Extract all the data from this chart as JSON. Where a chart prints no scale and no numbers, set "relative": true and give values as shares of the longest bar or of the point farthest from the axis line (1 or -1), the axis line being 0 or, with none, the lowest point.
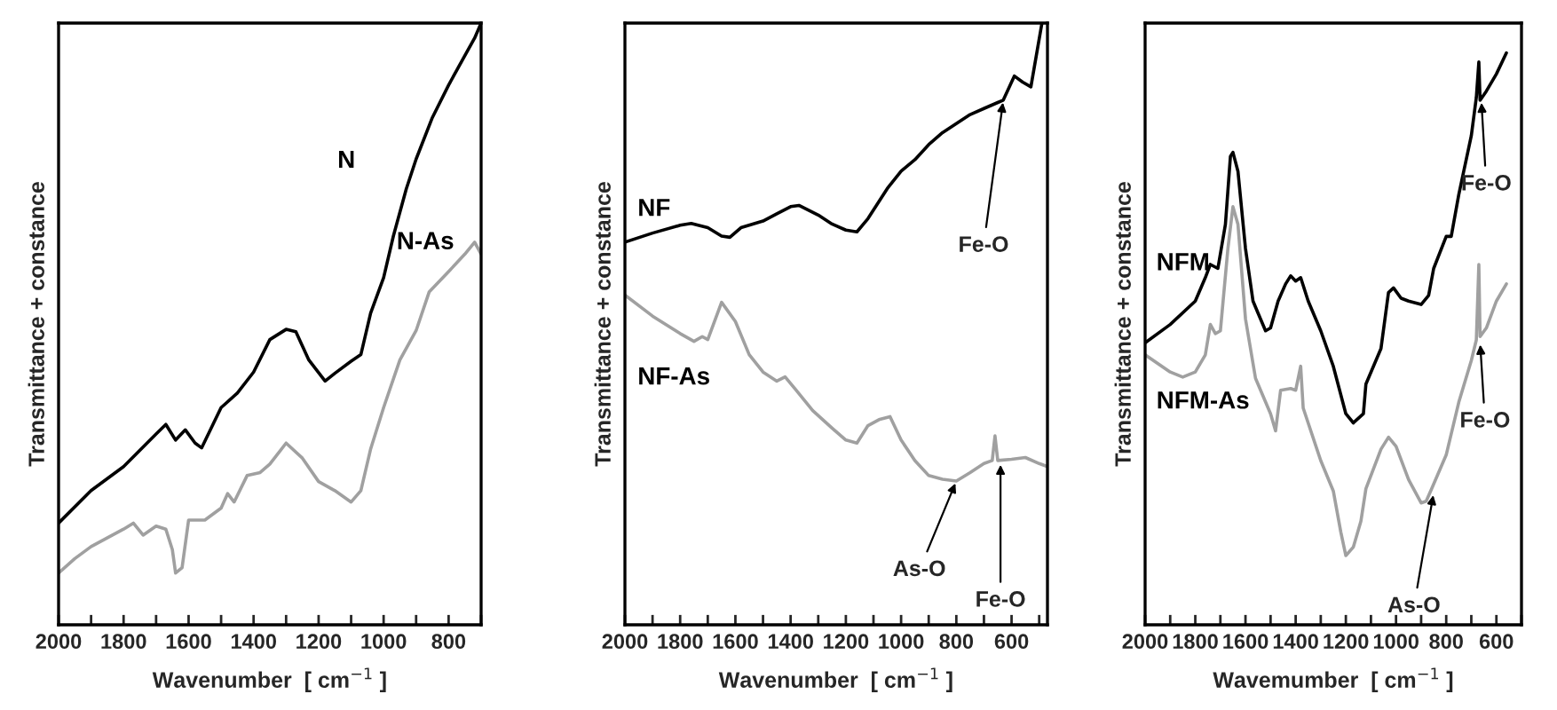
{
  "chart_data": [
    {
      "type": "line",
      "relative": true,
      "xlabel": "Wavenumber  [ cm$^{−1}$ ]",
      "ylabel": "Transmittance + constance",
      "xlim": [
        2000,
        700
      ],
      "xticks": [
        2000,
        {
          "value": 1900,
          "label": null
        },
        1800,
        {
          "value": 1700,
          "label": null
        },
        1600,
        {
          "value": 1500,
          "label": null
        },
        1400,
        {
          "value": 1300,
          "label": null
        },
        1200,
        {
          "value": 1100,
          "label": null
        },
        1000,
        {
          "value": 900,
          "label": null
        },
        800,
        {
          "value": 700,
          "label": null
        }
      ],
      "tick_labels": "x",
      "grid": false,
      "legend": false,
      "series": [
        {
          "name": "N",
          "color": "#000000",
          "x": [
            2000,
            1900,
            1800,
            1700,
            1670,
            1640,
            1610,
            1580,
            1560,
            1500,
            1450,
            1400,
            1350,
            1300,
            1270,
            1230,
            1180,
            1150,
            1100,
            1070,
            1040,
            1000,
            970,
            930,
            900,
            850,
            800,
            750,
            720,
            700
          ],
          "values": [
            0.169,
            0.223,
            0.263,
            0.317,
            0.333,
            0.307,
            0.324,
            0.302,
            0.294,
            0.361,
            0.385,
            0.42,
            0.474,
            0.491,
            0.487,
            0.44,
            0.405,
            0.418,
            0.438,
            0.449,
            0.518,
            0.577,
            0.646,
            0.725,
            0.774,
            0.843,
            0.897,
            0.946,
            0.975,
            1.0
          ]
        },
        {
          "name": "N-As",
          "color": "#a0a0a0",
          "x": [
            2000,
            1950,
            1900,
            1800,
            1770,
            1740,
            1700,
            1670,
            1650,
            1640,
            1620,
            1600,
            1550,
            1500,
            1480,
            1460,
            1420,
            1380,
            1350,
            1300,
            1250,
            1200,
            1150,
            1100,
            1070,
            1040,
            1000,
            950,
            900,
            860,
            800,
            750,
            720,
            700
          ],
          "values": [
            0.086,
            0.11,
            0.13,
            0.159,
            0.169,
            0.149,
            0.164,
            0.159,
            0.125,
            0.086,
            0.095,
            0.174,
            0.174,
            0.194,
            0.218,
            0.204,
            0.248,
            0.253,
            0.267,
            0.302,
            0.277,
            0.238,
            0.223,
            0.204,
            0.223,
            0.292,
            0.361,
            0.44,
            0.489,
            0.553,
            0.587,
            0.616,
            0.636,
            0.616
          ]
        }
      ]
    },
    {
      "type": "line",
      "relative": true,
      "xlabel": "Wavenumber  [ cm$^{−1}$ ]",
      "ylabel": "Transmittance + constance",
      "xlim": [
        2000,
        470
      ],
      "xticks": [
        2000,
        {
          "value": 1900,
          "label": null
        },
        1800,
        {
          "value": 1700,
          "label": null
        },
        1600,
        {
          "value": 1500,
          "label": null
        },
        1400,
        {
          "value": 1300,
          "label": null
        },
        1200,
        {
          "value": 1100,
          "label": null
        },
        1000,
        {
          "value": 900,
          "label": null
        },
        800,
        {
          "value": 700,
          "label": null
        },
        600,
        {
          "value": 500,
          "label": null
        }
      ],
      "tick_labels": "x",
      "grid": false,
      "legend": false,
      "annotations": [
        {
          "text": "Fe-O",
          "x": 630,
          "y": 0.872
        },
        {
          "text": "As-O",
          "x": 800,
          "y": 0.239
        },
        {
          "text": "Fe-O",
          "x": 640,
          "y": 0.27
        }
      ],
      "series": [
        {
          "name": "NF",
          "color": "#000000",
          "x": [
            2000,
            1900,
            1800,
            1760,
            1700,
            1650,
            1620,
            1580,
            1500,
            1450,
            1400,
            1370,
            1300,
            1250,
            1200,
            1160,
            1120,
            1050,
            1000,
            950,
            900,
            850,
            800,
            750,
            700,
            650,
            630,
            590,
            560,
            530,
            490
          ],
          "values": [
            0.636,
            0.651,
            0.664,
            0.667,
            0.66,
            0.646,
            0.644,
            0.66,
            0.671,
            0.683,
            0.695,
            0.697,
            0.681,
            0.666,
            0.656,
            0.653,
            0.675,
            0.725,
            0.754,
            0.773,
            0.798,
            0.818,
            0.833,
            0.848,
            0.858,
            0.868,
            0.872,
            0.912,
            0.902,
            0.894,
            1.0
          ]
        },
        {
          "name": "NF-As",
          "color": "#a0a0a0",
          "x": [
            2000,
            1900,
            1800,
            1750,
            1720,
            1700,
            1650,
            1600,
            1550,
            1500,
            1450,
            1420,
            1380,
            1320,
            1250,
            1200,
            1160,
            1120,
            1080,
            1040,
            1000,
            950,
            900,
            850,
            800,
            750,
            700,
            670,
            660,
            650,
            600,
            550,
            500,
            470
          ],
          "values": [
            0.548,
            0.513,
            0.484,
            0.471,
            0.479,
            0.474,
            0.536,
            0.504,
            0.449,
            0.42,
            0.405,
            0.412,
            0.39,
            0.356,
            0.327,
            0.307,
            0.302,
            0.331,
            0.341,
            0.346,
            0.307,
            0.273,
            0.248,
            0.242,
            0.239,
            0.253,
            0.268,
            0.273,
            0.314,
            0.273,
            0.275,
            0.278,
            0.268,
            0.263
          ]
        }
      ]
    },
    {
      "type": "line",
      "relative": true,
      "xlabel": "Wavemumber  [ cm$^{−1}$ ]",
      "ylabel": "Transmittance + constance",
      "xlim": [
        2000,
        500
      ],
      "xticks": [
        2000,
        {
          "value": 1900,
          "label": null
        },
        1800,
        {
          "value": 1700,
          "label": null
        },
        1600,
        {
          "value": 1500,
          "label": null
        },
        1400,
        {
          "value": 1300,
          "label": null
        },
        1200,
        {
          "value": 1100,
          "label": null
        },
        1000,
        {
          "value": 900,
          "label": null
        },
        800,
        {
          "value": 700,
          "label": null
        },
        600,
        {
          "value": 500,
          "label": null
        }
      ],
      "tick_labels": "x",
      "grid": false,
      "legend": false,
      "annotations": [
        {
          "text": "Fe-O",
          "x": 660,
          "y": 0.917
        },
        {
          "text": "Fe-O",
          "x": 665,
          "y": 0.494
        },
        {
          "text": "As-O",
          "x": 850,
          "y": 0.231
        }
      ],
      "series": [
        {
          "name": "NFM",
          "color": "#000000",
          "x": [
            2000,
            1900,
            1800,
            1760,
            1740,
            1710,
            1680,
            1660,
            1650,
            1630,
            1600,
            1570,
            1550,
            1520,
            1500,
            1470,
            1440,
            1420,
            1400,
            1380,
            1350,
            1300,
            1250,
            1200,
            1170,
            1130,
            1120,
            1060,
            1030,
            1010,
            980,
            950,
            900,
            870,
            850,
            800,
            780,
            750,
            700,
            680,
            670,
            665,
            640,
            600,
            560
          ],
          "values": [
            0.493,
            0.525,
            0.566,
            0.607,
            0.63,
            0.623,
            0.7,
            0.819,
            0.826,
            0.793,
            0.658,
            0.566,
            0.545,
            0.514,
            0.519,
            0.566,
            0.596,
            0.61,
            0.601,
            0.607,
            0.566,
            0.514,
            0.452,
            0.369,
            0.353,
            0.369,
            0.421,
            0.483,
            0.581,
            0.589,
            0.571,
            0.566,
            0.56,
            0.576,
            0.623,
            0.679,
            0.679,
            0.752,
            0.855,
            0.922,
            0.984,
            0.917,
            0.933,
            0.963,
            1.0
          ]
        },
        {
          "name": "NFM-As",
          "color": "#a0a0a0",
          "x": [
            2000,
            1900,
            1850,
            1800,
            1760,
            1740,
            1720,
            1700,
            1670,
            1650,
            1630,
            1600,
            1560,
            1500,
            1480,
            1460,
            1420,
            1400,
            1380,
            1370,
            1300,
            1250,
            1220,
            1200,
            1170,
            1140,
            1120,
            1060,
            1030,
            1000,
            950,
            900,
            880,
            860,
            800,
            750,
            700,
            680,
            670,
            665,
            640,
            600,
            560
          ],
          "values": [
            0.472,
            0.442,
            0.433,
            0.442,
            0.472,
            0.525,
            0.509,
            0.514,
            0.658,
            0.731,
            0.7,
            0.535,
            0.431,
            0.369,
            0.339,
            0.41,
            0.413,
            0.41,
            0.452,
            0.379,
            0.287,
            0.234,
            0.162,
            0.121,
            0.136,
            0.181,
            0.238,
            0.307,
            0.328,
            0.312,
            0.254,
            0.213,
            0.216,
            0.236,
            0.297,
            0.389,
            0.462,
            0.498,
            0.63,
            0.504,
            0.519,
            0.566,
            0.596
          ]
        }
      ]
    }
  ]
}
